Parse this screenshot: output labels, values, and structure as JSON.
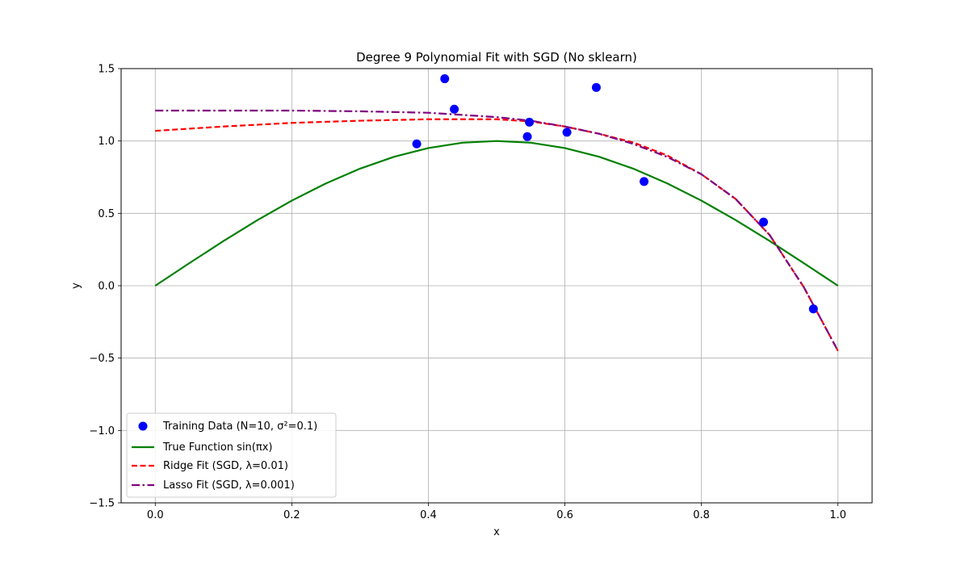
{
  "chart_data": {
    "type": "line",
    "title": "Degree 9 Polynomial Fit with SGD (No sklearn)",
    "xlabel": "x",
    "ylabel": "y",
    "xlim": [
      -0.05,
      1.05
    ],
    "ylim": [
      -1.5,
      1.5
    ],
    "xticks": [
      "0.0",
      "0.2",
      "0.4",
      "0.6",
      "0.8",
      "1.0"
    ],
    "yticks": [
      "−1.5",
      "−1.0",
      "−0.5",
      "0.0",
      "0.5",
      "1.0",
      "1.5"
    ],
    "grid": true,
    "legend_position": "lower-left",
    "scatter": {
      "name": "Training Data (N=10, σ²=0.1)",
      "color": "#0000ff",
      "points": [
        {
          "x": 0.383,
          "y": 0.98
        },
        {
          "x": 0.424,
          "y": 1.43
        },
        {
          "x": 0.438,
          "y": 1.22
        },
        {
          "x": 0.545,
          "y": 1.03
        },
        {
          "x": 0.548,
          "y": 1.13
        },
        {
          "x": 0.603,
          "y": 1.06
        },
        {
          "x": 0.646,
          "y": 1.37
        },
        {
          "x": 0.716,
          "y": 0.72
        },
        {
          "x": 0.891,
          "y": 0.44
        },
        {
          "x": 0.964,
          "y": -0.16
        }
      ]
    },
    "series": [
      {
        "name": "True Function sin(πx)",
        "color": "#008000",
        "style": "solid",
        "x": [
          0,
          0.05,
          0.1,
          0.15,
          0.2,
          0.25,
          0.3,
          0.35,
          0.4,
          0.45,
          0.5,
          0.55,
          0.6,
          0.65,
          0.7,
          0.75,
          0.8,
          0.85,
          0.9,
          0.95,
          1.0
        ],
        "y": [
          0,
          0.156,
          0.309,
          0.454,
          0.588,
          0.707,
          0.809,
          0.891,
          0.951,
          0.988,
          1.0,
          0.988,
          0.951,
          0.891,
          0.809,
          0.707,
          0.588,
          0.454,
          0.309,
          0.156,
          0
        ]
      },
      {
        "name": "Ridge Fit (SGD, λ=0.01)",
        "color": "#ff0000",
        "style": "dashed",
        "x": [
          0,
          0.1,
          0.2,
          0.3,
          0.4,
          0.5,
          0.55,
          0.6,
          0.65,
          0.7,
          0.75,
          0.8,
          0.85,
          0.9,
          0.95,
          1.0
        ],
        "y": [
          1.07,
          1.1,
          1.125,
          1.14,
          1.15,
          1.15,
          1.135,
          1.1,
          1.05,
          0.99,
          0.9,
          0.77,
          0.6,
          0.35,
          -0.01,
          -0.45
        ]
      },
      {
        "name": "Lasso Fit (SGD, λ=0.001)",
        "color": "#800080",
        "style": "dashdot",
        "x": [
          0,
          0.1,
          0.2,
          0.3,
          0.4,
          0.5,
          0.55,
          0.6,
          0.65,
          0.7,
          0.75,
          0.8,
          0.85,
          0.9,
          0.95,
          1.0
        ],
        "y": [
          1.21,
          1.21,
          1.21,
          1.205,
          1.195,
          1.165,
          1.14,
          1.1,
          1.05,
          0.98,
          0.89,
          0.77,
          0.6,
          0.35,
          -0.01,
          -0.45
        ]
      }
    ]
  }
}
